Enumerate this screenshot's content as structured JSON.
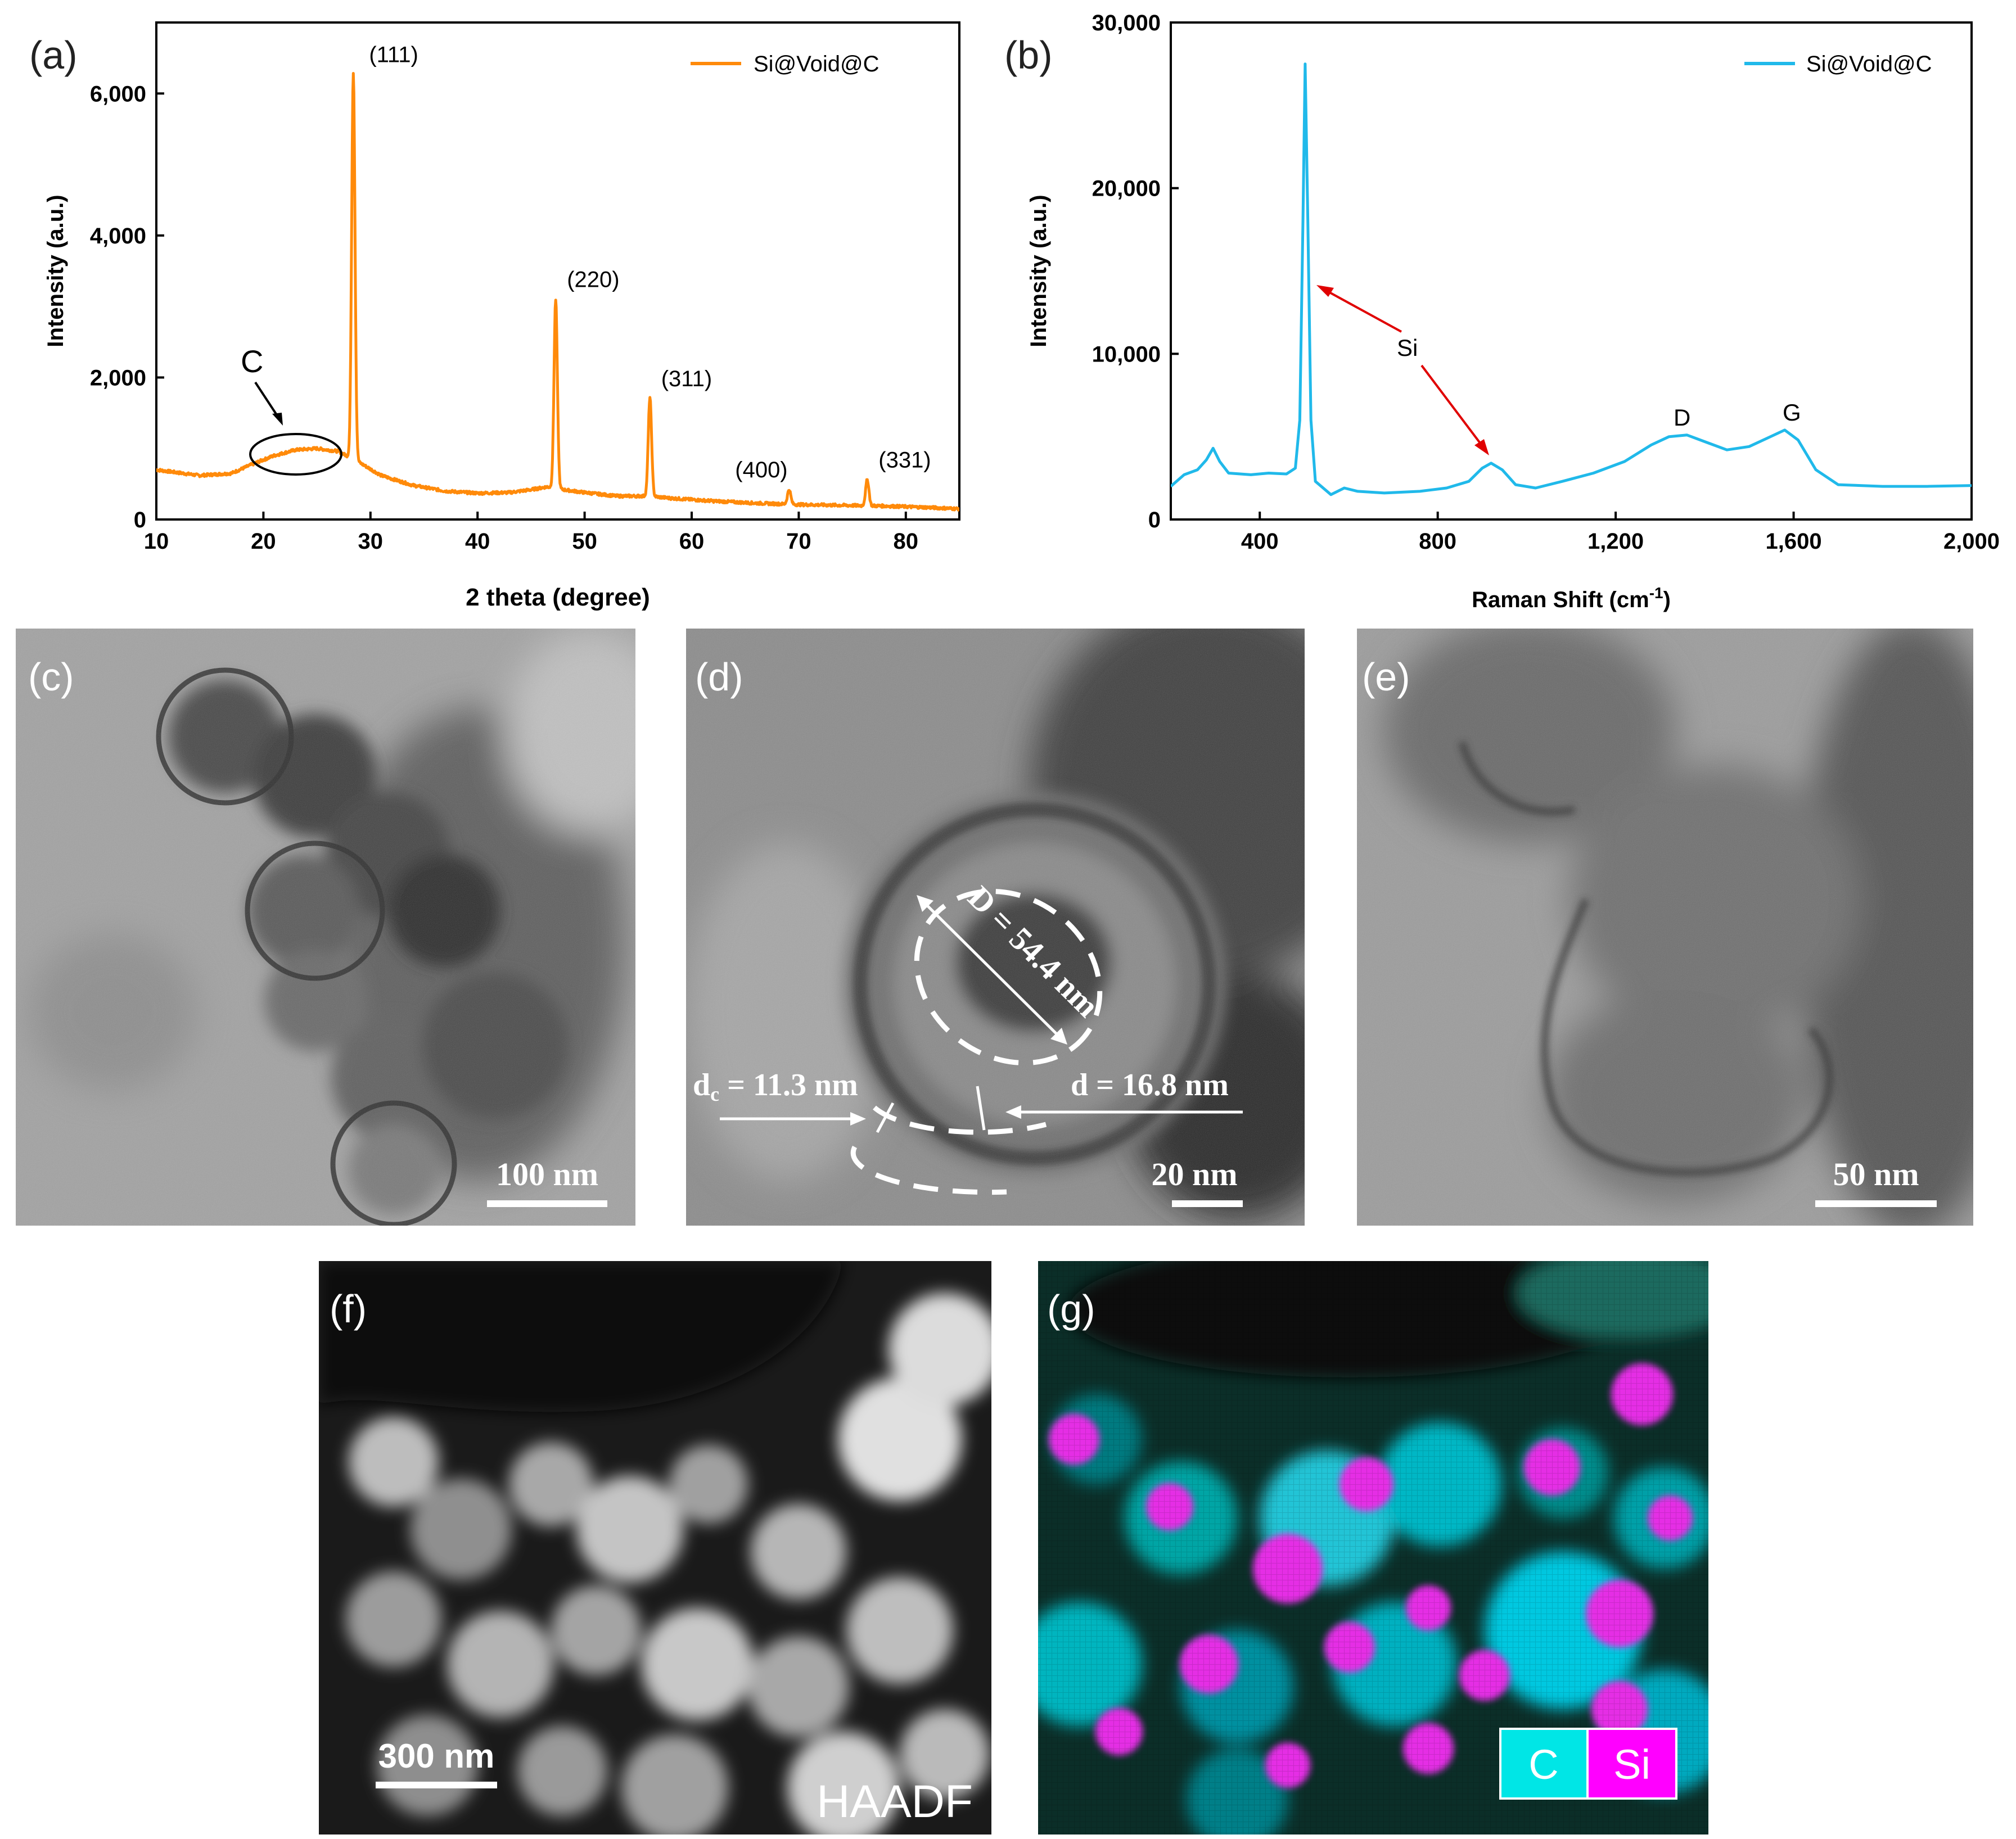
{
  "chart_data": [
    {
      "panel": "(a)",
      "type": "line",
      "xlabel": "2 theta (degree)",
      "ylabel": "Intensity (a.u.)",
      "xlim": [
        10,
        85
      ],
      "ylim": [
        0,
        7000
      ],
      "x_ticks": [
        10,
        20,
        30,
        40,
        50,
        60,
        70,
        80
      ],
      "y_ticks": [
        0,
        2000,
        4000,
        6000
      ],
      "y_tick_labels": [
        "0",
        "2,000",
        "4,000",
        "6,000"
      ],
      "legend": "top-right",
      "series": [
        {
          "name": "Si@Void@C",
          "color": "#ff8a0a"
        }
      ],
      "curve": {
        "baseline": [
          [
            10,
            700
          ],
          [
            14,
            620
          ],
          [
            17,
            650
          ],
          [
            19,
            780
          ],
          [
            21,
            900
          ],
          [
            23,
            980
          ],
          [
            25,
            1000
          ],
          [
            27,
            960
          ],
          [
            29,
            800
          ],
          [
            31,
            620
          ],
          [
            34,
            480
          ],
          [
            37,
            400
          ],
          [
            40,
            370
          ],
          [
            43,
            380
          ],
          [
            45,
            420
          ],
          [
            46.5,
            460
          ],
          [
            48,
            420
          ],
          [
            50,
            380
          ],
          [
            53,
            330
          ],
          [
            56,
            330
          ],
          [
            58,
            300
          ],
          [
            62,
            260
          ],
          [
            66,
            230
          ],
          [
            70,
            210
          ],
          [
            74,
            200
          ],
          [
            78,
            190
          ],
          [
            82,
            170
          ],
          [
            85,
            150
          ]
        ],
        "peaks": [
          {
            "x": 28.4,
            "y": 6300,
            "label": "(111)"
          },
          {
            "x": 47.3,
            "y": 3100,
            "label": "(220)"
          },
          {
            "x": 56.1,
            "y": 1720,
            "label": "(311)"
          },
          {
            "x": 69.1,
            "y": 420,
            "label": "(400)"
          },
          {
            "x": 76.4,
            "y": 560,
            "label": "(331)"
          }
        ]
      },
      "annotations": [
        {
          "text": "C",
          "x": 23,
          "y": 950
        }
      ]
    },
    {
      "panel": "(b)",
      "type": "line",
      "xlabel": "Raman Shift (cm",
      "xlabel_sup": "-1",
      "xlabel_end": ")",
      "ylabel": "Intensity (a.u.)",
      "xlim": [
        200,
        2000
      ],
      "ylim": [
        0,
        30000
      ],
      "x_ticks": [
        400,
        800,
        1200,
        1600,
        2000
      ],
      "x_tick_labels": [
        "400",
        "800",
        "1,200",
        "1,600",
        "2,000"
      ],
      "y_ticks": [
        0,
        10000,
        20000,
        30000
      ],
      "y_tick_labels": [
        "0",
        "10,000",
        "20,000",
        "30,000"
      ],
      "legend": "top-right",
      "series": [
        {
          "name": "Si@Void@C",
          "color": "#20b9ea"
        }
      ],
      "curve": {
        "points": [
          [
            200,
            2000
          ],
          [
            230,
            2700
          ],
          [
            260,
            3000
          ],
          [
            280,
            3600
          ],
          [
            295,
            4300
          ],
          [
            310,
            3500
          ],
          [
            330,
            2800
          ],
          [
            380,
            2700
          ],
          [
            420,
            2800
          ],
          [
            460,
            2750
          ],
          [
            480,
            3100
          ],
          [
            490,
            6000
          ],
          [
            497,
            18000
          ],
          [
            502,
            27500
          ],
          [
            508,
            18000
          ],
          [
            515,
            6000
          ],
          [
            525,
            2300
          ],
          [
            560,
            1500
          ],
          [
            590,
            1900
          ],
          [
            620,
            1700
          ],
          [
            680,
            1600
          ],
          [
            760,
            1700
          ],
          [
            820,
            1900
          ],
          [
            870,
            2300
          ],
          [
            900,
            3100
          ],
          [
            920,
            3400
          ],
          [
            945,
            3000
          ],
          [
            975,
            2100
          ],
          [
            1020,
            1900
          ],
          [
            1080,
            2300
          ],
          [
            1150,
            2800
          ],
          [
            1220,
            3500
          ],
          [
            1280,
            4500
          ],
          [
            1320,
            5000
          ],
          [
            1360,
            5100
          ],
          [
            1400,
            4700
          ],
          [
            1450,
            4200
          ],
          [
            1500,
            4400
          ],
          [
            1540,
            4900
          ],
          [
            1580,
            5400
          ],
          [
            1610,
            4800
          ],
          [
            1650,
            3000
          ],
          [
            1700,
            2100
          ],
          [
            1800,
            2000
          ],
          [
            1900,
            2000
          ],
          [
            2000,
            2050
          ]
        ]
      },
      "annotations": [
        {
          "text": "Si",
          "x": 920,
          "y": 10200
        },
        {
          "text": "D",
          "x": 1350,
          "y": 6000
        },
        {
          "text": "G",
          "x": 1585,
          "y": 6400
        }
      ]
    }
  ],
  "panels": {
    "c": {
      "label": "(c)",
      "scale": "100 nm"
    },
    "d": {
      "label": "(d)",
      "scale": "20 nm",
      "big_d": "D = 54.4 nm",
      "dc": "d",
      "dc_sub": "c",
      "dc_rest": " = 11.3 nm",
      "d_gap": "d = 16.8 nm"
    },
    "e": {
      "label": "(e)",
      "scale": "50 nm"
    },
    "f": {
      "label": "(f)",
      "scale": "300 nm",
      "mode": "HAADF"
    },
    "g": {
      "label": "(g)",
      "legend_c": "C",
      "legend_si": "Si",
      "color_c": "#00e6e6",
      "color_si": "#ff00ff"
    }
  }
}
